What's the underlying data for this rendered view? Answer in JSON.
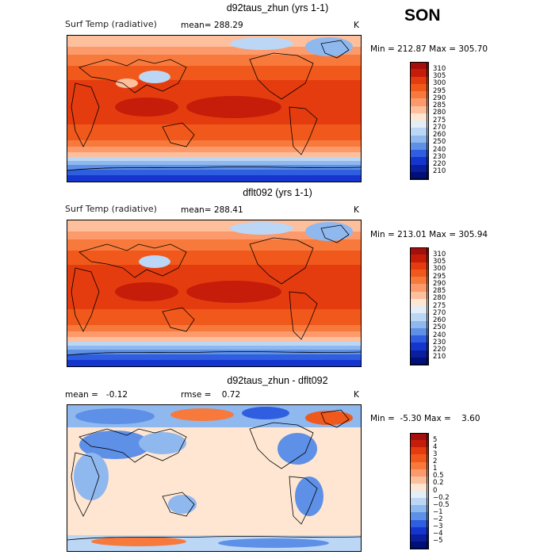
{
  "season": "SON",
  "panels": [
    {
      "title": "d92taus_zhun (yrs 1-1)",
      "left_label": "Surf Temp (radiative)",
      "mean_text": "mean= 288.29",
      "units": "K",
      "minmax": "Min = 212.87 Max = 305.70",
      "levels": [
        "310",
        "305",
        "300",
        "295",
        "290",
        "285",
        "280",
        "275",
        "270",
        "260",
        "250",
        "240",
        "230",
        "220",
        "210"
      ]
    },
    {
      "title": "dflt092 (yrs 1-1)",
      "left_label": "Surf Temp (radiative)",
      "mean_text": "mean= 288.41",
      "units": "K",
      "minmax": "Min = 213.01 Max = 305.94",
      "levels": [
        "310",
        "305",
        "300",
        "295",
        "290",
        "285",
        "280",
        "275",
        "270",
        "260",
        "250",
        "240",
        "230",
        "220",
        "210"
      ]
    },
    {
      "title": "d92taus_zhun - dflt092",
      "left_label": "mean =   -0.12",
      "mean_text": "rmse =    0.72",
      "units": "K",
      "minmax": "Min =  -5.30 Max =    3.60",
      "levels": [
        "5",
        "4",
        "3",
        "2",
        "1",
        "0.5",
        "0.2",
        "0",
        "−0.2",
        "−0.5",
        "−1",
        "−2",
        "−3",
        "−4",
        "−5"
      ]
    }
  ],
  "colors": {
    "abs_scale": [
      "#a50f0b",
      "#c51d0a",
      "#e53c0f",
      "#f0591b",
      "#f77a3c",
      "#fc9a6c",
      "#fdbf9c",
      "#fee6d2",
      "#e3eef9",
      "#bcd6f5",
      "#8fb8ef",
      "#5d90e6",
      "#2f5ee0",
      "#1436cf",
      "#0a1ea0",
      "#00107a"
    ],
    "diff_scale": [
      "#a50f0b",
      "#c51d0a",
      "#e53c0f",
      "#f0591b",
      "#f77a3c",
      "#fc9a6c",
      "#fdbf9c",
      "#fee6d2",
      "#e3eef9",
      "#bcd6f5",
      "#8fb8ef",
      "#5d90e6",
      "#2f5ee0",
      "#1436cf",
      "#0a1ea0",
      "#00107a"
    ]
  }
}
